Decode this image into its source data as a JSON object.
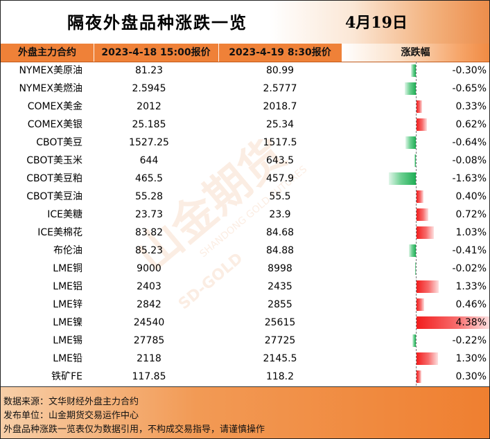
{
  "title": "隔夜外盘品种涨跌一览",
  "date": "4月19日",
  "headers": {
    "name": "外盘主力合约",
    "prev": "2023-4-18 15:00报价",
    "curr": "2023-4-19 8:30报价",
    "change": "涨跌幅"
  },
  "colors": {
    "up": "#f21d1d",
    "down": "#1fae55",
    "header": "#ef8138"
  },
  "rows": [
    {
      "name": "NYMEX美原油",
      "prev": "81.23",
      "curr": "80.99",
      "change": "-0.30%",
      "value": -0.3
    },
    {
      "name": "NYMEX美燃油",
      "prev": "2.5945",
      "curr": "2.5777",
      "change": "-0.65%",
      "value": -0.65
    },
    {
      "name": "COMEX美金",
      "prev": "2012",
      "curr": "2018.7",
      "change": "0.33%",
      "value": 0.33
    },
    {
      "name": "COMEX美银",
      "prev": "25.185",
      "curr": "25.34",
      "change": "0.62%",
      "value": 0.62
    },
    {
      "name": "CBOT美豆",
      "prev": "1527.25",
      "curr": "1517.5",
      "change": "-0.64%",
      "value": -0.64
    },
    {
      "name": "CBOT美玉米",
      "prev": "644",
      "curr": "643.5",
      "change": "-0.08%",
      "value": -0.08
    },
    {
      "name": "CBOT美豆粕",
      "prev": "465.5",
      "curr": "457.9",
      "change": "-1.63%",
      "value": -1.63
    },
    {
      "name": "CBOT美豆油",
      "prev": "55.28",
      "curr": "55.5",
      "change": "0.40%",
      "value": 0.4
    },
    {
      "name": "ICE美糖",
      "prev": "23.73",
      "curr": "23.9",
      "change": "0.72%",
      "value": 0.72
    },
    {
      "name": "ICE美棉花",
      "prev": "83.82",
      "curr": "84.68",
      "change": "1.03%",
      "value": 1.03
    },
    {
      "name": "布伦油",
      "prev": "85.23",
      "curr": "84.88",
      "change": "-0.41%",
      "value": -0.41
    },
    {
      "name": "LME铜",
      "prev": "9000",
      "curr": "8998",
      "change": "-0.02%",
      "value": -0.02
    },
    {
      "name": "LME铝",
      "prev": "2403",
      "curr": "2435",
      "change": "1.33%",
      "value": 1.33
    },
    {
      "name": "LME锌",
      "prev": "2842",
      "curr": "2855",
      "change": "0.46%",
      "value": 0.46
    },
    {
      "name": "LME镍",
      "prev": "24540",
      "curr": "25615",
      "change": "4.38%",
      "value": 4.38
    },
    {
      "name": "LME锡",
      "prev": "27785",
      "curr": "27725",
      "change": "-0.22%",
      "value": -0.22
    },
    {
      "name": "LME铅",
      "prev": "2118",
      "curr": "2145.5",
      "change": "1.30%",
      "value": 1.3
    },
    {
      "name": "铁矿FE",
      "prev": "117.85",
      "curr": "118.2",
      "change": "0.30%",
      "value": 0.3
    }
  ],
  "footer": {
    "source": "数据来源：文华财经外盘主力合约",
    "publisher": "发布单位：山金期货交易运作中心",
    "disclaimer": "外盘品种涨跌一览表仅为数据引用，不构成交易指导，请谨慎操作"
  },
  "watermark": {
    "brand": "山金期货",
    "english": "SHANDONG GOLD FUTURES",
    "logo_text": "SD-GOLD"
  }
}
